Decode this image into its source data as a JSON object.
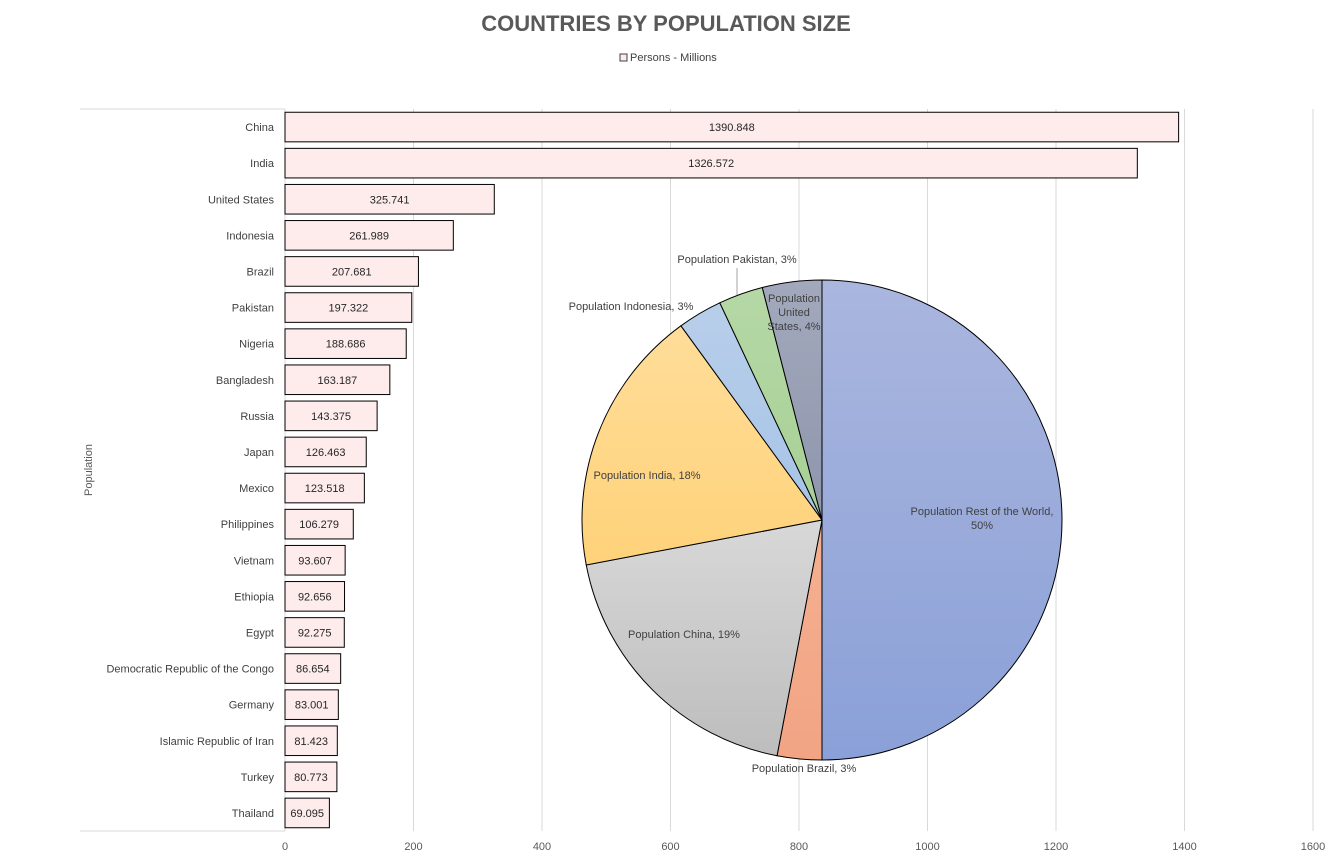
{
  "chart_data": [
    {
      "type": "bar",
      "orientation": "horizontal",
      "title": "COUNTRIES BY POPULATION SIZE",
      "legend": [
        "Persons - Millions"
      ],
      "legend_position": "top",
      "ylabel": "Population",
      "xlabel": "",
      "xlim": [
        0,
        1600
      ],
      "xticks": [
        0,
        200,
        400,
        600,
        800,
        1000,
        1200,
        1400,
        1600
      ],
      "grid": true,
      "bar_color": "#fdeceb",
      "categories": [
        "China",
        "India",
        "United States",
        "Indonesia",
        "Brazil",
        "Pakistan",
        "Nigeria",
        "Bangladesh",
        "Russia",
        "Japan",
        "Mexico",
        "Philippines",
        "Vietnam",
        "Ethiopia",
        "Egypt",
        "Democratic Republic of the Congo",
        "Germany",
        "Islamic Republic of Iran",
        "Turkey",
        "Thailand"
      ],
      "values": [
        1390.848,
        1326.572,
        325.741,
        261.989,
        207.681,
        197.322,
        188.686,
        163.187,
        143.375,
        126.463,
        123.518,
        106.279,
        93.607,
        92.656,
        92.275,
        86.654,
        83.001,
        81.423,
        80.773,
        69.095
      ],
      "value_labels": [
        "1390.848",
        "1326.572",
        "325.741",
        "261.989",
        "207.681",
        "197.322",
        "188.686",
        "163.187",
        "143.375",
        "126.463",
        "123.518",
        "106.279",
        "93.607",
        "92.656",
        "92.275",
        "86.654",
        "83.001",
        "81.423",
        "80.773",
        "69.095"
      ]
    },
    {
      "type": "pie",
      "slices": [
        {
          "label": "Population Rest of the World, 50%",
          "label_lines": [
            "Population Rest of the World,",
            "50%"
          ],
          "value": 50,
          "color_top": "#aab6de",
          "color_bottom": "#8aa0d8"
        },
        {
          "label": "Population Brazil, 3%",
          "label_lines": [
            "Population Brazil, 3%"
          ],
          "value": 3,
          "color_top": "#f4b091",
          "color_bottom": "#f2a483"
        },
        {
          "label": "Population China, 19%",
          "label_lines": [
            "Population China, 19%"
          ],
          "value": 19,
          "color_top": "#d8d8d8",
          "color_bottom": "#bdbdbd"
        },
        {
          "label": "Population India, 18%",
          "label_lines": [
            "Population India, 18%"
          ],
          "value": 18,
          "color_top": "#ffdd99",
          "color_bottom": "#ffd27a"
        },
        {
          "label": "Population Indonesia, 3%",
          "label_lines": [
            "Population Indonesia, 3%"
          ],
          "value": 3,
          "color_top": "#b8cfea",
          "color_bottom": "#a6c3e6"
        },
        {
          "label": "Population Pakistan, 3%",
          "label_lines": [
            "Population Pakistan, 3%"
          ],
          "value": 3,
          "color_top": "#b5d8a6",
          "color_bottom": "#a8d095"
        },
        {
          "label": "Population United States, 4%",
          "label_lines": [
            "Population",
            "United",
            "States, 4%"
          ],
          "value": 4,
          "color_top": "#a3a9bd",
          "color_bottom": "#8e96ac"
        }
      ]
    }
  ]
}
